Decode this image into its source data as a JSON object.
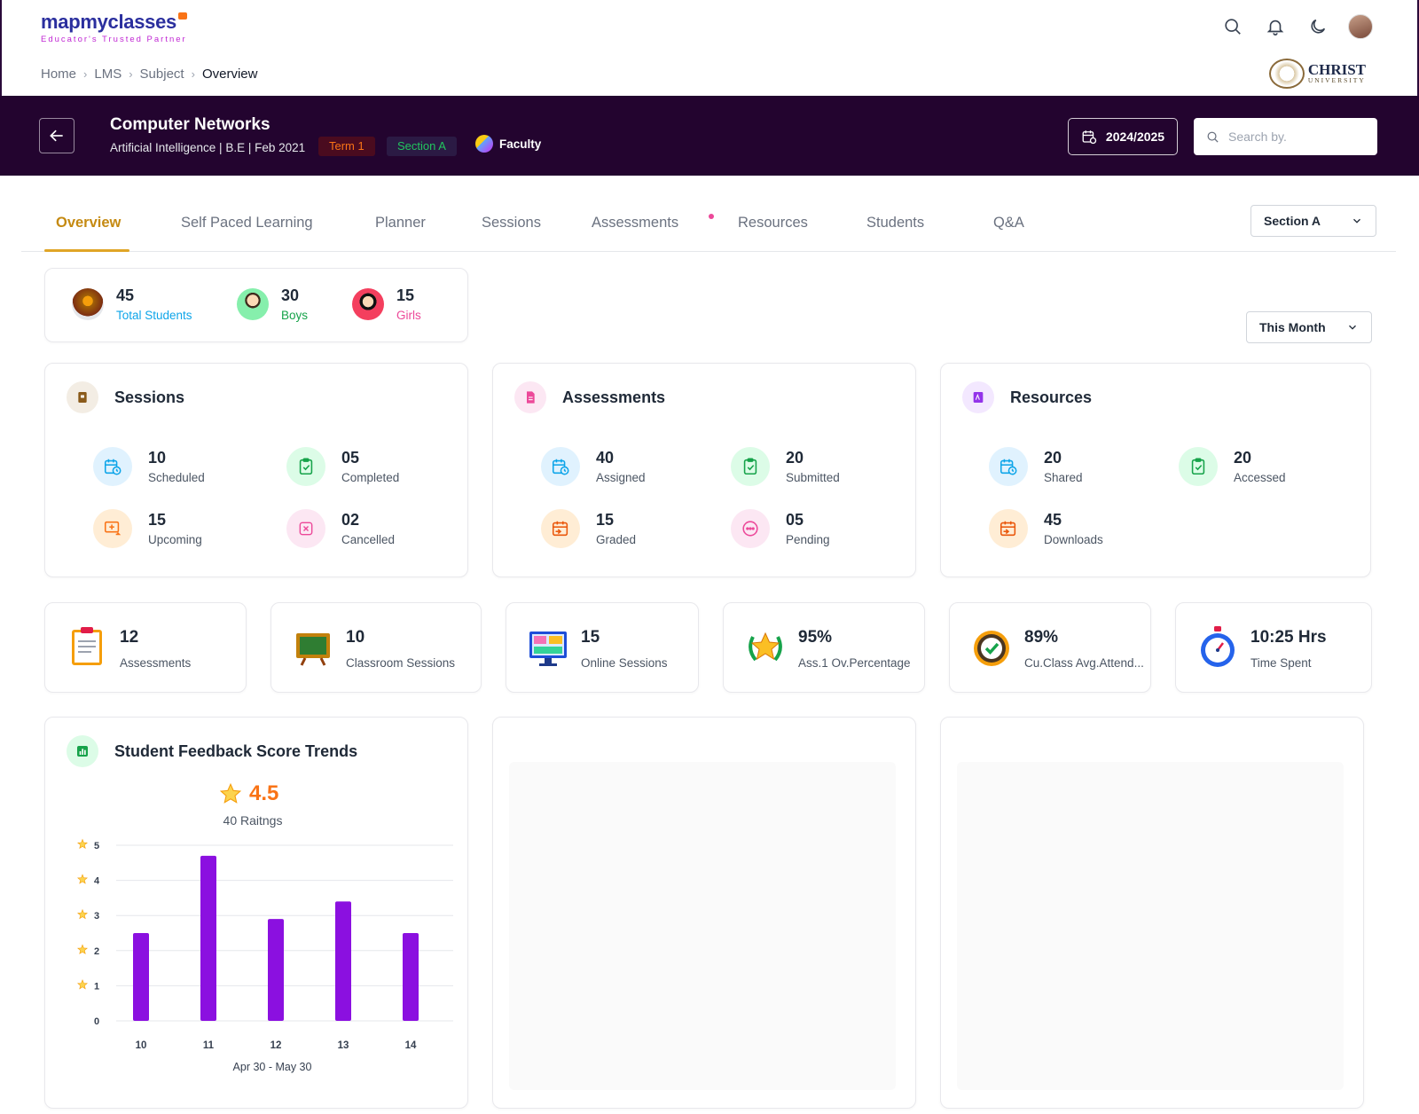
{
  "brand": {
    "logo_main": "mapmyclasses",
    "logo_tagline": "Educator's Trusted Partner"
  },
  "top_icons": [
    "search-icon",
    "bell-icon",
    "moon-icon"
  ],
  "breadcrumb": [
    "Home",
    "LMS",
    "Subject",
    "Overview"
  ],
  "university": {
    "name": "CHRIST",
    "sub": "UNIVERSITY"
  },
  "course": {
    "title": "Computer Networks",
    "subtitle": "Artificial Intelligence | B.E | Feb 2021",
    "term": "Term 1",
    "section": "Section A",
    "role": "Faculty"
  },
  "year": "2024/2025",
  "search": {
    "placeholder": "Search by."
  },
  "tabs": [
    "Overview",
    "Self Paced Learning",
    "Planner",
    "Sessions",
    "Assessments",
    "Resources",
    "Students",
    "Q&A"
  ],
  "section_select": "Section A",
  "period_select": "This Month",
  "students": [
    {
      "value": "45",
      "label": "Total Students"
    },
    {
      "value": "30",
      "label": "Boys"
    },
    {
      "value": "15",
      "label": "Girls"
    }
  ],
  "sessions": {
    "title": "Sessions",
    "stats": [
      {
        "value": "10",
        "label": "Scheduled"
      },
      {
        "value": "05",
        "label": "Completed"
      },
      {
        "value": "15",
        "label": "Upcoming"
      },
      {
        "value": "02",
        "label": "Cancelled"
      }
    ]
  },
  "assessments": {
    "title": "Assessments",
    "stats": [
      {
        "value": "40",
        "label": "Assigned"
      },
      {
        "value": "20",
        "label": "Submitted"
      },
      {
        "value": "15",
        "label": "Graded"
      },
      {
        "value": "05",
        "label": "Pending"
      }
    ]
  },
  "resources": {
    "title": "Resources",
    "stats": [
      {
        "value": "20",
        "label": "Shared"
      },
      {
        "value": "20",
        "label": "Accessed"
      },
      {
        "value": "45",
        "label": "Downloads"
      }
    ]
  },
  "metrics": [
    {
      "value": "12",
      "label": "Assessments"
    },
    {
      "value": "10",
      "label": "Classroom Sessions"
    },
    {
      "value": "15",
      "label": "Online Sessions"
    },
    {
      "value": "95%",
      "label": "Ass.1 Ov.Percentage"
    },
    {
      "value": "89%",
      "label": "Cu.Class Avg.Attend..."
    },
    {
      "value": "10:25 Hrs",
      "label": "Time Spent"
    }
  ],
  "feedback": {
    "title": "Student Feedback Score Trends",
    "rating": "4.5",
    "ratings_count": "40 Raitngs"
  },
  "chart_data": {
    "type": "bar",
    "categories": [
      "10",
      "11",
      "12",
      "13",
      "14"
    ],
    "values": [
      2.5,
      4.7,
      2.9,
      3.4,
      2.5
    ],
    "ylim": [
      0,
      5
    ],
    "yticks": [
      "0",
      "1",
      "2",
      "3",
      "4",
      "5"
    ],
    "xlabel": "Apr 30 - May 30",
    "grid": true,
    "bar_color": "#8b10e0"
  }
}
